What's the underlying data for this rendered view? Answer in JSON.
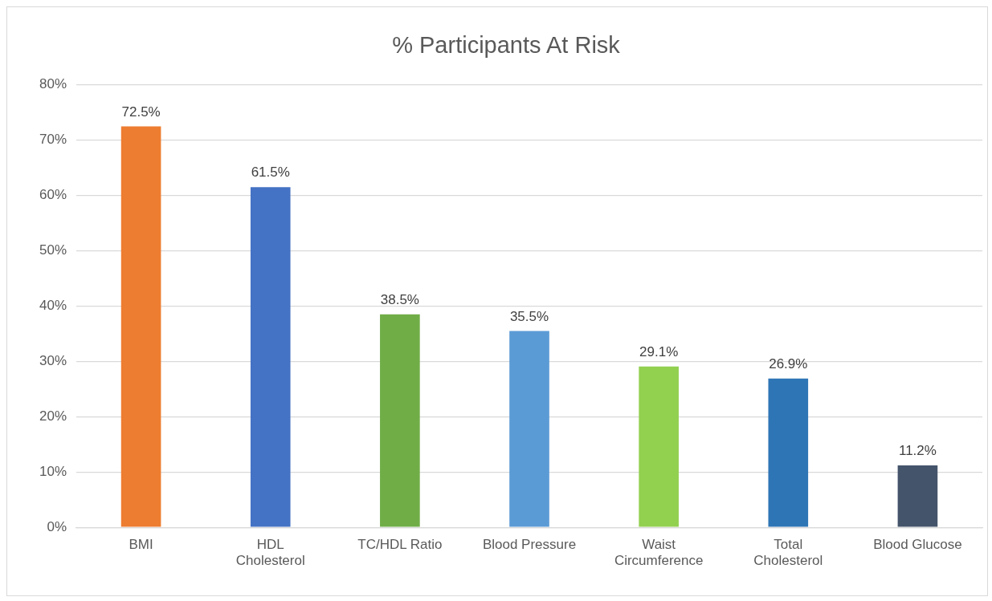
{
  "chart_data": {
    "type": "bar",
    "title": "% Participants At Risk",
    "categories": [
      "BMI",
      "HDL Cholesterol",
      "TC/HDL Ratio",
      "Blood Pressure",
      "Waist Circumference",
      "Total Cholesterol",
      "Blood Glucose"
    ],
    "values": [
      72.5,
      61.5,
      38.5,
      35.5,
      29.1,
      26.9,
      11.2
    ],
    "colors": [
      "#ed7d31",
      "#4472c4",
      "#70ad47",
      "#5b9bd5",
      "#92d050",
      "#2e75b6",
      "#44546a"
    ],
    "value_labels": [
      "72.5%",
      "61.5%",
      "38.5%",
      "35.5%",
      "29.1%",
      "26.9%",
      "11.2%"
    ],
    "ylim": [
      0,
      80
    ],
    "yticks": [
      {
        "value": 0,
        "label": "0%"
      },
      {
        "value": 10,
        "label": "10%"
      },
      {
        "value": 20,
        "label": "20%"
      },
      {
        "value": 30,
        "label": "30%"
      },
      {
        "value": 40,
        "label": "40%"
      },
      {
        "value": 50,
        "label": "50%"
      },
      {
        "value": 60,
        "label": "60%"
      },
      {
        "value": 70,
        "label": "70%"
      },
      {
        "value": 80,
        "label": "80%"
      }
    ],
    "grid": "y",
    "legend": false
  }
}
